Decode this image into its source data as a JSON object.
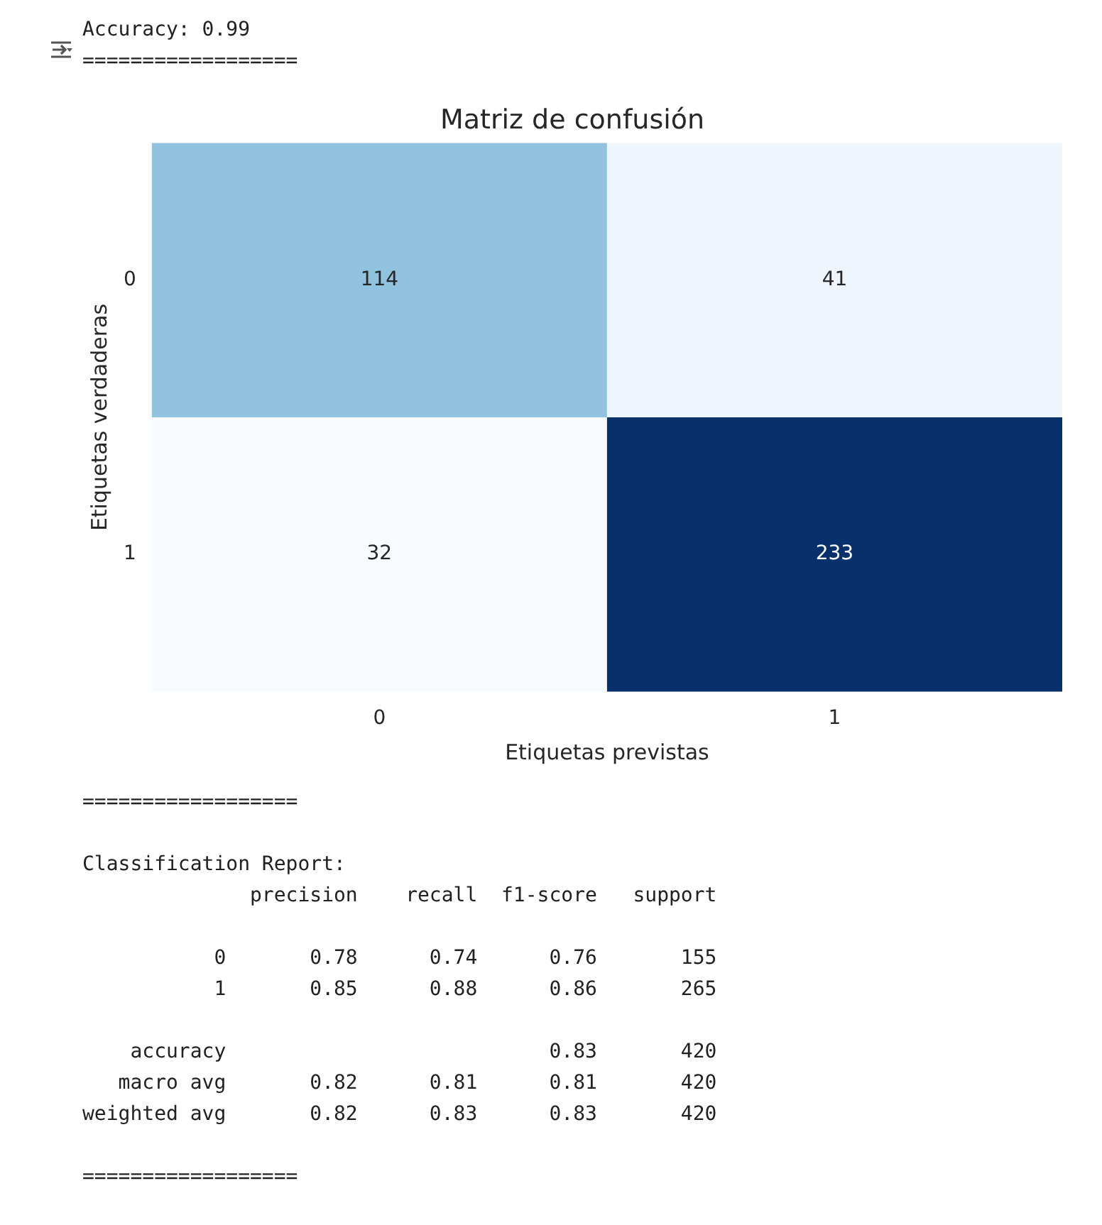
{
  "chart_data": {
    "type": "heatmap",
    "title": "Matriz de confusión",
    "xlabel": "Etiquetas previstas",
    "ylabel": "Etiquetas verdaderas",
    "categories": [
      "0",
      "1"
    ],
    "y_categories": [
      "0",
      "1"
    ],
    "cells": [
      [
        114,
        41
      ],
      [
        32,
        233
      ]
    ],
    "data_labels": true,
    "annotations": [
      "Accuracy: 0.99",
      "==================",
      "==================",
      "Classification Report:",
      "              precision    recall  f1-score   support",
      "           0       0.78      0.74      0.76       155",
      "           1       0.85      0.88      0.86       265",
      "    accuracy                           0.83       420",
      "   macro avg       0.82      0.81      0.81       420",
      "weighted avg       0.82      0.83      0.83       420",
      "=================="
    ]
  }
}
